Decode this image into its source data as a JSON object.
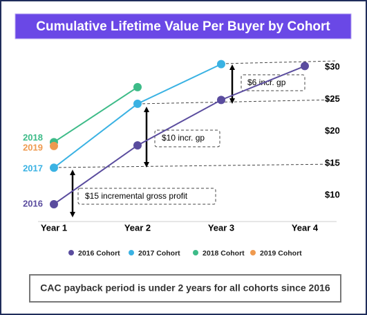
{
  "chart_data": {
    "type": "line",
    "title": "Cumulative Lifetime Value Per Buyer by Cohort",
    "categories": [
      "Year 1",
      "Year 2",
      "Year 3",
      "Year 4"
    ],
    "series": [
      {
        "name": "2016 Cohort",
        "label": "2016",
        "color": "#5a4c9e",
        "values": [
          8.6,
          17.8,
          24.9,
          30.2
        ]
      },
      {
        "name": "2017 Cohort",
        "label": "2017",
        "color": "#3ab2e3",
        "values": [
          14.3,
          24.3,
          30.5,
          null
        ]
      },
      {
        "name": "2018 Cohort",
        "label": "2018",
        "color": "#3dbb88",
        "values": [
          18.3,
          26.9,
          null,
          null
        ]
      },
      {
        "name": "2019 Cohort",
        "label": "2019",
        "color": "#ef9a4f",
        "values": [
          17.7,
          null,
          null,
          null
        ]
      }
    ],
    "ylim": [
      6,
      31
    ],
    "yticks": [
      {
        "value": 10,
        "label": "$10"
      },
      {
        "value": 15,
        "label": "$15"
      },
      {
        "value": 20,
        "label": "$20"
      },
      {
        "value": 25,
        "label": "$25"
      },
      {
        "value": 30,
        "label": "$30"
      }
    ],
    "grid": false,
    "annotations": [
      "$15 incremental gross profit",
      "$10 incr. gp",
      "$6 incr. gp"
    ],
    "footnote": "CAC payback period is under 2 years for all cohorts since 2016"
  }
}
